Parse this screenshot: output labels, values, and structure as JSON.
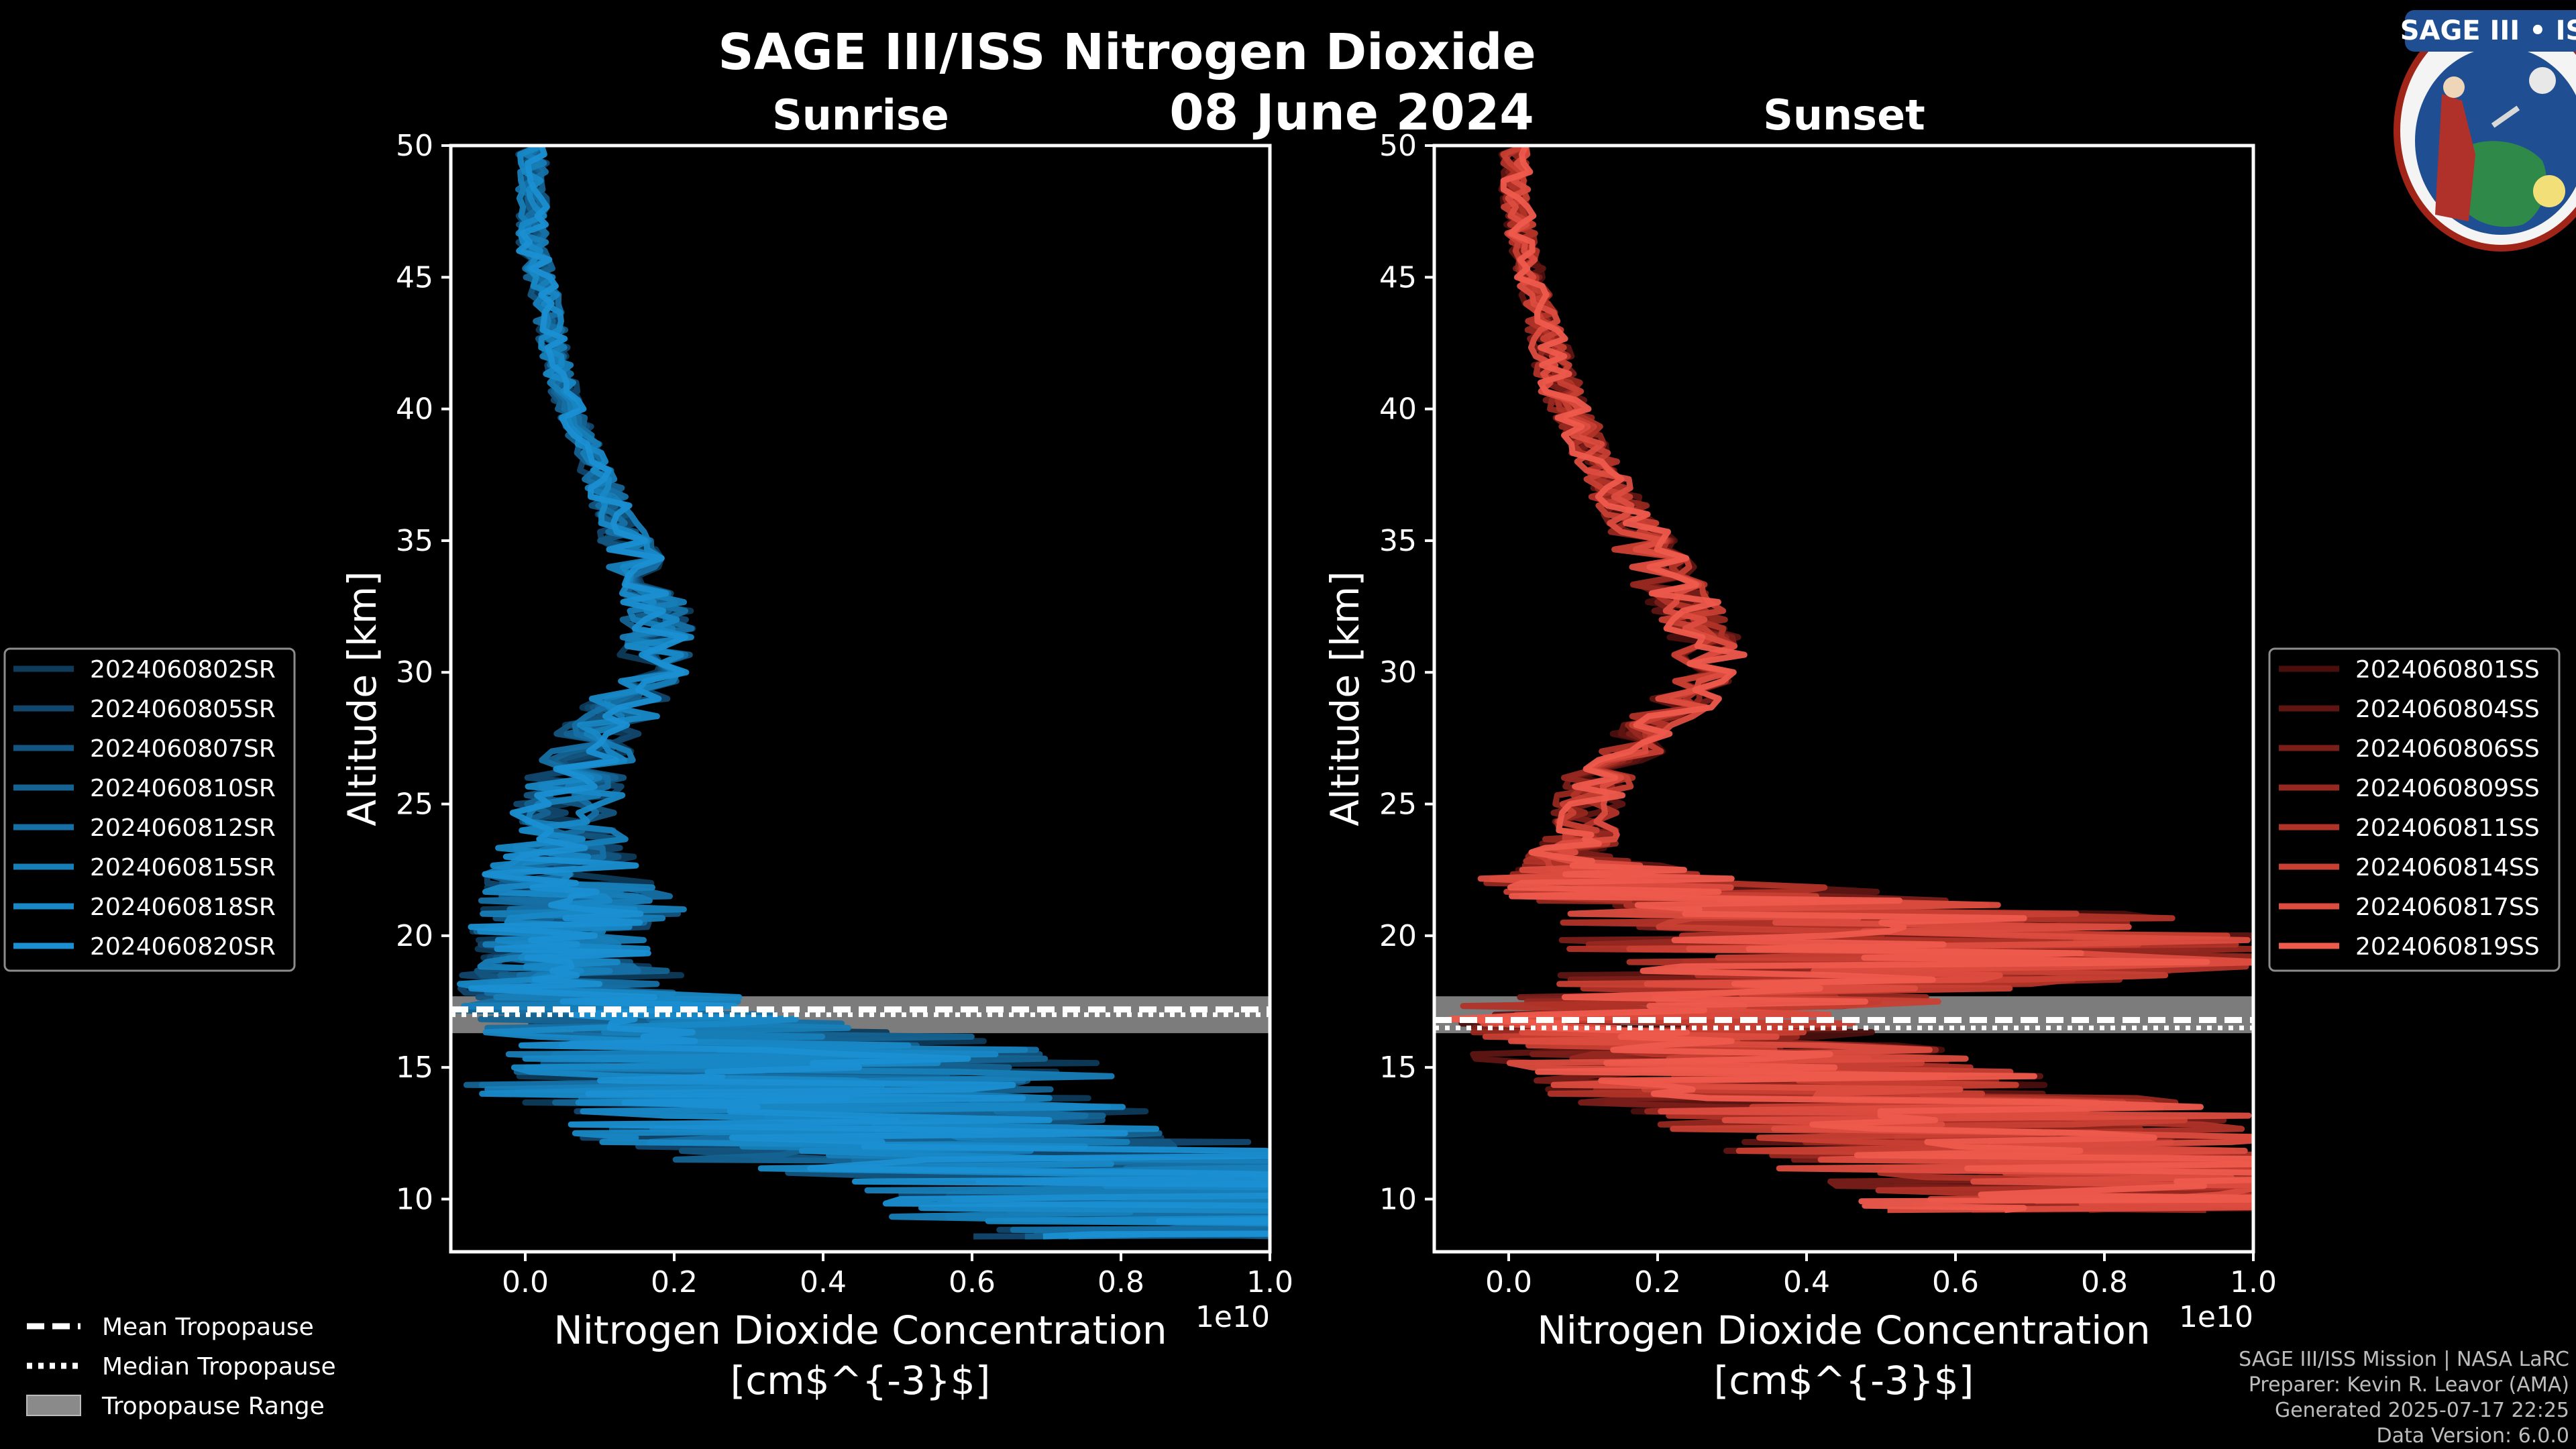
{
  "title": "SAGE III/ISS Nitrogen Dioxide",
  "date": "08 June 2024",
  "logo_text": "SAGE III • ISS",
  "colors": {
    "background": "#000000",
    "sunrise": "#1a8fd2",
    "sunset": "#ee5a4c",
    "tropopause_band": "#8a8a8a"
  },
  "chart_data": [
    {
      "type": "line",
      "title": "Sunrise",
      "xlabel": "Nitrogen Dioxide Concentration",
      "xlabel_unit": "[cm$^{-3}$]",
      "ylabel": "Altitude [km]",
      "x_scale_note": "1e10",
      "xlim": [
        -0.1,
        1.0
      ],
      "ylim": [
        8,
        50
      ],
      "xticks": [
        "0.0",
        "0.2",
        "0.4",
        "0.6",
        "0.8",
        "1.0"
      ],
      "yticks": [
        "10",
        "15",
        "20",
        "25",
        "30",
        "35",
        "40",
        "45",
        "50"
      ],
      "tropopause": {
        "mean": 17.2,
        "median": 17.0,
        "min": 16.3,
        "max": 17.7
      },
      "series_names": [
        "2024060802SR",
        "2024060805SR",
        "2024060807SR",
        "2024060810SR",
        "2024060812SR",
        "2024060815SR",
        "2024060818SR",
        "2024060820SR"
      ],
      "profile_altitudes": [
        50,
        48,
        46,
        44,
        42,
        40,
        38,
        36,
        34,
        32,
        30,
        28,
        26,
        24,
        22,
        21,
        20,
        19,
        18,
        17,
        16,
        15,
        14,
        13,
        12,
        11,
        10,
        9,
        8.5
      ],
      "profile_mean": [
        0.01,
        0.01,
        0.01,
        0.03,
        0.04,
        0.06,
        0.09,
        0.12,
        0.15,
        0.18,
        0.17,
        0.11,
        0.07,
        0.05,
        0.05,
        0.07,
        0.05,
        0.05,
        0.06,
        0.1,
        0.3,
        0.4,
        0.35,
        0.45,
        0.5,
        0.95,
        1.05,
        1.1,
        1.1
      ],
      "profile_spread": [
        0.02,
        0.02,
        0.02,
        0.02,
        0.02,
        0.02,
        0.02,
        0.03,
        0.04,
        0.05,
        0.05,
        0.06,
        0.07,
        0.08,
        0.12,
        0.15,
        0.12,
        0.12,
        0.2,
        0.25,
        0.35,
        0.45,
        0.45,
        0.4,
        0.5,
        0.6,
        0.6,
        0.6,
        0.6
      ]
    },
    {
      "type": "line",
      "title": "Sunset",
      "xlabel": "Nitrogen Dioxide Concentration",
      "xlabel_unit": "[cm$^{-3}$]",
      "ylabel": "Altitude [km]",
      "x_scale_note": "1e10",
      "xlim": [
        -0.1,
        1.0
      ],
      "ylim": [
        8,
        50
      ],
      "xticks": [
        "0.0",
        "0.2",
        "0.4",
        "0.6",
        "0.8",
        "1.0"
      ],
      "yticks": [
        "10",
        "15",
        "20",
        "25",
        "30",
        "35",
        "40",
        "45",
        "50"
      ],
      "tropopause": {
        "mean": 16.8,
        "median": 16.5,
        "min": 16.3,
        "max": 17.7
      },
      "series_names": [
        "2024060801SS",
        "2024060804SS",
        "2024060806SS",
        "2024060809SS",
        "2024060811SS",
        "2024060814SS",
        "2024060817SS",
        "2024060819SS"
      ],
      "profile_altitudes": [
        50,
        48,
        46,
        44,
        42,
        40,
        38,
        36,
        34,
        32,
        30,
        28,
        26,
        24,
        23,
        22,
        21,
        20,
        19,
        18,
        17,
        16,
        15,
        14,
        13,
        12,
        11,
        10,
        9.5
      ],
      "profile_mean": [
        0.01,
        0.01,
        0.02,
        0.04,
        0.06,
        0.08,
        0.12,
        0.16,
        0.2,
        0.25,
        0.28,
        0.2,
        0.12,
        0.1,
        0.08,
        0.15,
        0.45,
        0.55,
        0.6,
        0.35,
        0.2,
        0.25,
        0.3,
        0.45,
        0.6,
        0.7,
        0.8,
        0.9,
        0.95
      ],
      "profile_spread": [
        0.02,
        0.02,
        0.02,
        0.02,
        0.03,
        0.03,
        0.03,
        0.04,
        0.05,
        0.05,
        0.05,
        0.05,
        0.05,
        0.05,
        0.06,
        0.2,
        0.4,
        0.5,
        0.5,
        0.35,
        0.3,
        0.3,
        0.35,
        0.4,
        0.45,
        0.45,
        0.45,
        0.45,
        0.45
      ]
    }
  ],
  "legend_tropopause": {
    "mean": "Mean Tropopause",
    "median": "Median Tropopause",
    "range": "Tropopause Range"
  },
  "credits": [
    "SAGE III/ISS Mission | NASA LaRC",
    "Preparer: Kevin R. Leavor (AMA)",
    "Generated 2025-07-17 22:25",
    "Data Version: 6.0.0"
  ]
}
